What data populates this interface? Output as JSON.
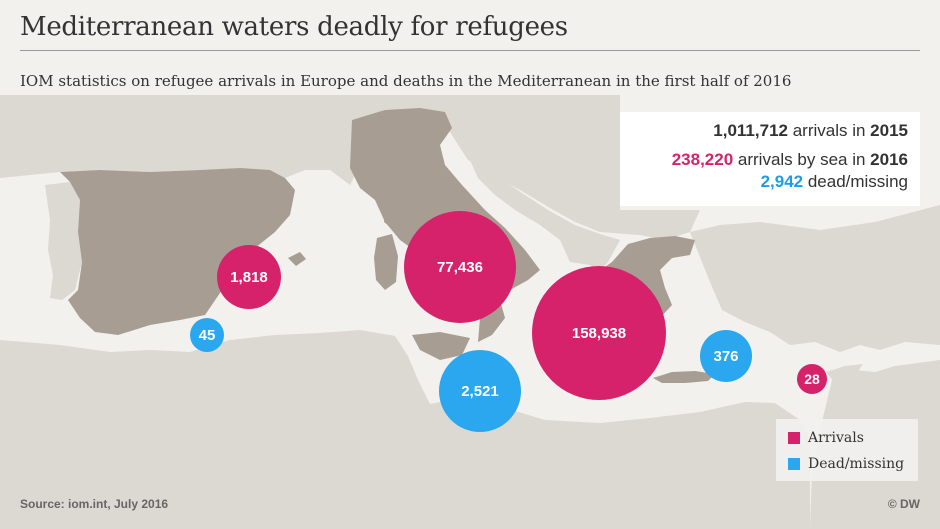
{
  "header": {
    "title": "Mediterranean waters deadly for refugees",
    "subtitle": "IOM statistics on refugee arrivals in Europe and deaths in the Mediterranean in the first half of 2016"
  },
  "stats": {
    "line1": {
      "value": "1,011,712",
      "text": " arrivals in ",
      "year": "2015"
    },
    "line2": {
      "value": "238,220",
      "text": " arrivals by sea in ",
      "year": "2016"
    },
    "line3": {
      "value": "2,942",
      "text": " dead/missing"
    }
  },
  "markers": {
    "spain_arrivals": {
      "label": "1,818",
      "value": 1818,
      "kind": "arrivals"
    },
    "spain_dead": {
      "label": "45",
      "value": 45,
      "kind": "dead"
    },
    "italy_arrivals": {
      "label": "77,436",
      "value": 77436,
      "kind": "arrivals"
    },
    "central_med_dead": {
      "label": "2,521",
      "value": 2521,
      "kind": "dead"
    },
    "greece_arrivals": {
      "label": "158,938",
      "value": 158938,
      "kind": "arrivals"
    },
    "eastern_med_dead": {
      "label": "376",
      "value": 376,
      "kind": "dead"
    },
    "cyprus_arrivals": {
      "label": "28",
      "value": 28,
      "kind": "arrivals"
    }
  },
  "legend": {
    "arrivals_label": "Arrivals",
    "dead_label": "Dead/missing"
  },
  "footer": {
    "source": "Source: iom.int, July 2016",
    "credit": "© DW"
  },
  "colors": {
    "arrivals": "#d6226b",
    "dead": "#2aa7ee",
    "highlight_land": "#a79d92",
    "other_land": "#dcd8d2",
    "sea": "#f2f1ee"
  }
}
